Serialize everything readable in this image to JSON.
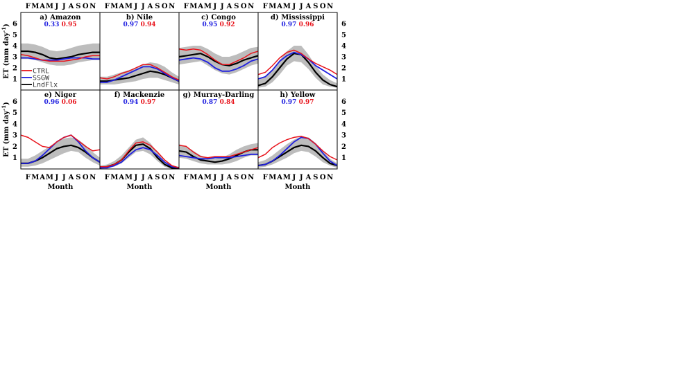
{
  "figure": {
    "ylabel_main": "ET (mm day",
    "ylabel_exp": "-1",
    "ylabel_close": ")",
    "xlabel": "Month",
    "month_ticks": [
      "F",
      "M",
      "A",
      "M",
      "J",
      "J",
      "A",
      "S",
      "O",
      "N"
    ],
    "y_ticks": [
      "1",
      "2",
      "3",
      "4",
      "5",
      "6"
    ],
    "legend": [
      {
        "name": "CTRL",
        "color": "#e8141c"
      },
      {
        "name": "SSGW",
        "color": "#1f1fe0"
      },
      {
        "name": "LndFlx",
        "color": "#000000"
      }
    ],
    "colors": {
      "ctrl": "#e8141c",
      "ssgw": "#1f1fe0",
      "lndflx": "#000000",
      "band": "#bdbdbd"
    }
  },
  "chart_data": [
    {
      "type": "line",
      "title": "a) Amazon",
      "stat_blue": "0.33",
      "stat_red": "0.95",
      "x": [
        1,
        2,
        3,
        4,
        5,
        6,
        7,
        8,
        9,
        10,
        11,
        12
      ],
      "ylim": [
        0,
        7
      ],
      "series": [
        {
          "name": "CTRL",
          "values": [
            3.2,
            3.1,
            2.9,
            2.7,
            2.6,
            2.6,
            2.6,
            2.7,
            2.8,
            3.0,
            3.1,
            3.1
          ]
        },
        {
          "name": "SSGW",
          "values": [
            2.9,
            2.9,
            2.8,
            2.7,
            2.7,
            2.7,
            2.8,
            2.9,
            2.9,
            2.9,
            2.8,
            2.8
          ]
        },
        {
          "name": "LndFlx",
          "values": [
            3.5,
            3.5,
            3.4,
            3.2,
            2.9,
            2.8,
            2.9,
            3.0,
            3.2,
            3.3,
            3.4,
            3.4
          ]
        },
        {
          "name": "band",
          "lower": [
            2.8,
            2.8,
            2.7,
            2.5,
            2.3,
            2.2,
            2.2,
            2.3,
            2.5,
            2.6,
            2.7,
            2.7
          ],
          "upper": [
            4.2,
            4.2,
            4.1,
            3.9,
            3.6,
            3.5,
            3.6,
            3.8,
            4.0,
            4.1,
            4.2,
            4.2
          ]
        }
      ]
    },
    {
      "type": "line",
      "title": "b) Nile",
      "stat_blue": "0.97",
      "stat_red": "0.94",
      "x": [
        1,
        2,
        3,
        4,
        5,
        6,
        7,
        8,
        9,
        10,
        11,
        12
      ],
      "ylim": [
        0,
        7
      ],
      "series": [
        {
          "name": "CTRL",
          "values": [
            1.1,
            1.0,
            1.2,
            1.5,
            1.7,
            2.0,
            2.3,
            2.3,
            2.0,
            1.6,
            1.2,
            0.9
          ]
        },
        {
          "name": "SSGW",
          "values": [
            0.7,
            0.7,
            0.9,
            1.2,
            1.5,
            1.8,
            2.1,
            2.1,
            1.9,
            1.5,
            1.1,
            0.8
          ]
        },
        {
          "name": "LndFlx",
          "values": [
            0.8,
            0.8,
            0.9,
            1.0,
            1.1,
            1.3,
            1.5,
            1.7,
            1.6,
            1.4,
            1.1,
            0.8
          ]
        },
        {
          "name": "band",
          "lower": [
            0.5,
            0.5,
            0.5,
            0.6,
            0.7,
            0.8,
            1.0,
            1.1,
            1.1,
            0.9,
            0.7,
            0.5
          ],
          "upper": [
            1.2,
            1.2,
            1.4,
            1.6,
            1.8,
            2.0,
            2.3,
            2.5,
            2.4,
            2.1,
            1.6,
            1.2
          ]
        }
      ]
    },
    {
      "type": "line",
      "title": "c) Congo",
      "stat_blue": "0.95",
      "stat_red": "0.92",
      "x": [
        1,
        2,
        3,
        4,
        5,
        6,
        7,
        8,
        9,
        10,
        11,
        12
      ],
      "ylim": [
        0,
        7
      ],
      "series": [
        {
          "name": "CTRL",
          "values": [
            3.7,
            3.6,
            3.7,
            3.6,
            3.2,
            2.7,
            2.3,
            2.3,
            2.6,
            2.9,
            3.3,
            3.5
          ]
        },
        {
          "name": "SSGW",
          "values": [
            2.7,
            2.8,
            2.9,
            2.8,
            2.5,
            2.0,
            1.7,
            1.7,
            1.9,
            2.2,
            2.6,
            2.8
          ]
        },
        {
          "name": "LndFlx",
          "values": [
            3.0,
            3.1,
            3.2,
            3.3,
            3.0,
            2.6,
            2.3,
            2.2,
            2.4,
            2.7,
            2.9,
            3.1
          ]
        },
        {
          "name": "band",
          "lower": [
            2.3,
            2.4,
            2.5,
            2.6,
            2.2,
            1.8,
            1.5,
            1.4,
            1.6,
            1.9,
            2.2,
            2.4
          ],
          "upper": [
            3.8,
            3.9,
            4.0,
            4.0,
            3.7,
            3.3,
            3.0,
            3.0,
            3.2,
            3.5,
            3.8,
            3.9
          ]
        }
      ]
    },
    {
      "type": "line",
      "title": "d) Mississippi",
      "stat_blue": "0.97",
      "stat_red": "0.96",
      "x": [
        1,
        2,
        3,
        4,
        5,
        6,
        7,
        8,
        9,
        10,
        11,
        12
      ],
      "ylim": [
        0,
        7
      ],
      "series": [
        {
          "name": "CTRL",
          "values": [
            1.4,
            1.6,
            2.2,
            2.9,
            3.4,
            3.6,
            3.3,
            2.8,
            2.4,
            2.1,
            1.8,
            1.4
          ]
        },
        {
          "name": "SSGW",
          "values": [
            1.0,
            1.2,
            1.8,
            2.6,
            3.1,
            3.4,
            3.2,
            2.8,
            2.2,
            1.8,
            1.4,
            1.0
          ]
        },
        {
          "name": "LndFlx",
          "values": [
            0.4,
            0.6,
            1.2,
            2.0,
            2.8,
            3.3,
            3.2,
            2.5,
            1.6,
            0.9,
            0.5,
            0.3
          ]
        },
        {
          "name": "band",
          "lower": [
            0.2,
            0.3,
            0.7,
            1.4,
            2.2,
            2.6,
            2.5,
            1.9,
            1.1,
            0.5,
            0.3,
            0.2
          ],
          "upper": [
            0.9,
            1.2,
            1.8,
            2.7,
            3.5,
            4.0,
            4.0,
            3.2,
            2.2,
            1.4,
            0.9,
            0.6
          ]
        }
      ]
    },
    {
      "type": "line",
      "title": "e) Niger",
      "stat_blue": "0.96",
      "stat_red": "0.06",
      "x": [
        1,
        2,
        3,
        4,
        5,
        6,
        7,
        8,
        9,
        10,
        11,
        12
      ],
      "ylim": [
        0,
        7
      ],
      "series": [
        {
          "name": "CTRL",
          "values": [
            3.0,
            2.8,
            2.4,
            2.0,
            1.9,
            2.4,
            2.8,
            3.0,
            2.5,
            2.0,
            1.6,
            1.7
          ]
        },
        {
          "name": "SSGW",
          "values": [
            0.5,
            0.5,
            0.7,
            1.2,
            1.8,
            2.4,
            2.8,
            3.0,
            2.4,
            1.6,
            1.0,
            0.6
          ]
        },
        {
          "name": "LndFlx",
          "values": [
            0.5,
            0.5,
            0.7,
            1.0,
            1.4,
            1.8,
            2.0,
            2.1,
            1.9,
            1.5,
            1.0,
            0.6
          ]
        },
        {
          "name": "band",
          "lower": [
            0.2,
            0.2,
            0.3,
            0.5,
            0.8,
            1.1,
            1.4,
            1.6,
            1.5,
            1.0,
            0.6,
            0.3
          ],
          "upper": [
            0.9,
            0.9,
            1.2,
            1.6,
            2.0,
            2.4,
            2.7,
            2.8,
            2.6,
            2.1,
            1.5,
            1.0
          ]
        }
      ]
    },
    {
      "type": "line",
      "title": "f) Mackenzie",
      "stat_blue": "0.94",
      "stat_red": "0.97",
      "x": [
        1,
        2,
        3,
        4,
        5,
        6,
        7,
        8,
        9,
        10,
        11,
        12
      ],
      "ylim": [
        0,
        7
      ],
      "series": [
        {
          "name": "CTRL",
          "values": [
            0.2,
            0.2,
            0.4,
            0.8,
            1.6,
            2.3,
            2.4,
            2.1,
            1.5,
            0.8,
            0.3,
            0.1
          ]
        },
        {
          "name": "SSGW",
          "values": [
            0.1,
            0.1,
            0.3,
            0.6,
            1.2,
            1.7,
            1.9,
            1.7,
            1.2,
            0.6,
            0.2,
            0.1
          ]
        },
        {
          "name": "LndFlx",
          "values": [
            0.1,
            0.2,
            0.4,
            0.8,
            1.5,
            2.1,
            2.2,
            1.8,
            1.0,
            0.4,
            0.1,
            0.1
          ]
        },
        {
          "name": "band",
          "lower": [
            0.0,
            0.1,
            0.2,
            0.5,
            1.0,
            1.5,
            1.6,
            1.3,
            0.7,
            0.2,
            0.0,
            0.0
          ],
          "upper": [
            0.3,
            0.4,
            0.7,
            1.2,
            1.9,
            2.6,
            2.8,
            2.3,
            1.5,
            0.7,
            0.3,
            0.2
          ]
        }
      ]
    },
    {
      "type": "line",
      "title": "g) Murray-Darling",
      "stat_blue": "0.87",
      "stat_red": "0.84",
      "x": [
        1,
        2,
        3,
        4,
        5,
        6,
        7,
        8,
        9,
        10,
        11,
        12
      ],
      "ylim": [
        0,
        7
      ],
      "series": [
        {
          "name": "CTRL",
          "values": [
            2.1,
            2.0,
            1.5,
            1.1,
            1.0,
            1.1,
            1.1,
            1.1,
            1.3,
            1.5,
            1.7,
            1.9
          ]
        },
        {
          "name": "SSGW",
          "values": [
            1.2,
            1.1,
            1.0,
            0.9,
            0.9,
            1.0,
            1.0,
            1.0,
            1.1,
            1.2,
            1.3,
            1.3
          ]
        },
        {
          "name": "LndFlx",
          "values": [
            1.6,
            1.5,
            1.1,
            0.8,
            0.7,
            0.6,
            0.7,
            0.9,
            1.2,
            1.5,
            1.7,
            1.7
          ]
        },
        {
          "name": "band",
          "lower": [
            1.0,
            0.9,
            0.7,
            0.5,
            0.4,
            0.4,
            0.4,
            0.5,
            0.7,
            1.0,
            1.2,
            1.2
          ],
          "upper": [
            2.2,
            2.0,
            1.6,
            1.2,
            1.0,
            0.9,
            1.0,
            1.3,
            1.7,
            2.0,
            2.2,
            2.3
          ]
        }
      ]
    },
    {
      "type": "line",
      "title": "h) Yellow",
      "stat_blue": "0.97",
      "stat_red": "0.97",
      "x": [
        1,
        2,
        3,
        4,
        5,
        6,
        7,
        8,
        9,
        10,
        11,
        12
      ],
      "ylim": [
        0,
        7
      ],
      "series": [
        {
          "name": "CTRL",
          "values": [
            1.0,
            1.3,
            1.9,
            2.3,
            2.6,
            2.8,
            2.9,
            2.7,
            2.2,
            1.6,
            1.1,
            0.8
          ]
        },
        {
          "name": "SSGW",
          "values": [
            0.3,
            0.4,
            0.7,
            1.2,
            1.8,
            2.4,
            2.8,
            2.7,
            2.2,
            1.4,
            0.7,
            0.3
          ]
        },
        {
          "name": "LndFlx",
          "values": [
            0.3,
            0.4,
            0.7,
            1.1,
            1.5,
            1.9,
            2.1,
            2.0,
            1.6,
            1.0,
            0.5,
            0.3
          ]
        },
        {
          "name": "band",
          "lower": [
            0.1,
            0.2,
            0.4,
            0.7,
            1.0,
            1.4,
            1.6,
            1.5,
            1.1,
            0.6,
            0.3,
            0.1
          ],
          "upper": [
            0.6,
            0.8,
            1.2,
            1.7,
            2.2,
            2.6,
            2.9,
            2.8,
            2.3,
            1.6,
            0.9,
            0.5
          ]
        }
      ]
    }
  ]
}
